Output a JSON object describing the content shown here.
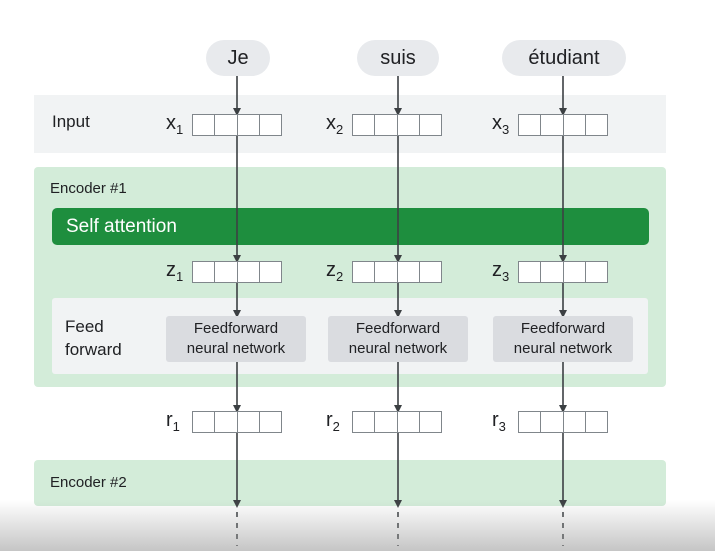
{
  "tokens": [
    "Je",
    "suis",
    "étudiant"
  ],
  "input_label": "Input",
  "encoder1_label": "Encoder #1",
  "self_attention_label": "Self attention",
  "feedforward_label_line1": "Feed",
  "feedforward_label_line2": "forward",
  "ffn_line1": "Feedforward",
  "ffn_line2": "neural network",
  "encoder2_label": "Encoder #2",
  "vectors": {
    "x": {
      "symbol": "x",
      "subs": [
        "1",
        "2",
        "3"
      ]
    },
    "z": {
      "symbol": "z",
      "subs": [
        "1",
        "2",
        "3"
      ]
    },
    "r": {
      "symbol": "r",
      "subs": [
        "1",
        "2",
        "3"
      ]
    }
  },
  "colors": {
    "encoder_band": "#d3ecd9",
    "self_attention": "#1e8e3e",
    "input_band": "#f1f3f4",
    "ffn_box": "#dadce0",
    "arrow": "#3c4043"
  }
}
